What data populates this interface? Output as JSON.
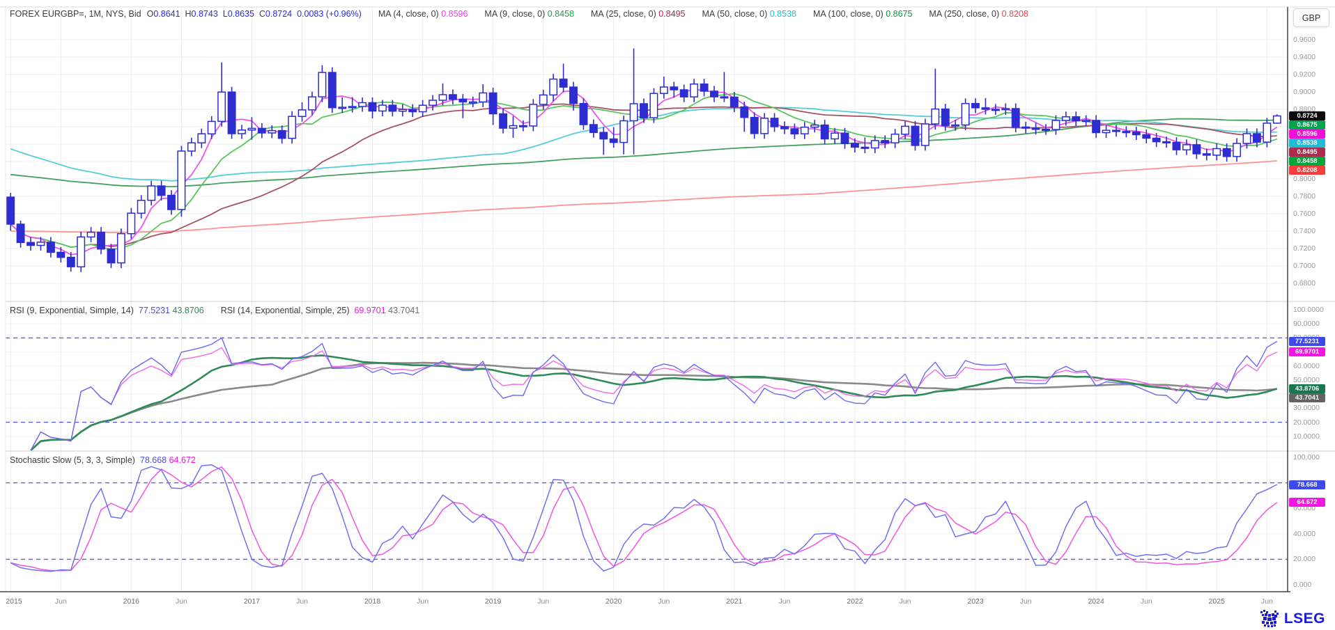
{
  "window": {
    "currency_button": "GBP"
  },
  "logo": {
    "text": "LSEG"
  },
  "main_panel": {
    "legend": {
      "title": "FOREX EURGBP=, 1M, NYS, Bid",
      "ohlc": [
        {
          "label": "O",
          "value": "0.8641"
        },
        {
          "label": "H",
          "value": "0.8743"
        },
        {
          "label": "L",
          "value": "0.8635"
        },
        {
          "label": "C",
          "value": "0.8724"
        }
      ],
      "change": "0.0083 (+0.96%)",
      "value_color": "#2929f0",
      "ma_items": [
        {
          "label": "MA (4, close, 0)",
          "value": "0.8596",
          "color": "#ee3fe4"
        },
        {
          "label": "MA (9, close, 0)",
          "value": "0.8458",
          "color": "#17a83b"
        },
        {
          "label": "MA (25, close, 0)",
          "value": "0.8495",
          "color": "#b0274e"
        },
        {
          "label": "MA (50, close, 0)",
          "value": "0.8538",
          "color": "#21bcd8"
        },
        {
          "label": "MA (100, close, 0)",
          "value": "0.8675",
          "color": "#0d9446"
        },
        {
          "label": "MA (250, close, 0)",
          "value": "0.8208",
          "color": "#e9414b"
        }
      ]
    },
    "axis_ticks": [
      "0.9600",
      "0.9400",
      "0.9200",
      "0.9000",
      "0.8800",
      "0.8600",
      "0.8400",
      "0.8200",
      "0.8000",
      "0.7800",
      "0.7600",
      "0.7400",
      "0.7200",
      "0.7000",
      "0.6800"
    ],
    "badges": [
      {
        "text": "0.8724",
        "bg": "#0a0a0a"
      },
      {
        "text": "0.8675",
        "bg": "#00a34e"
      },
      {
        "text": "0.8596",
        "bg": "#f010d8"
      },
      {
        "text": "0.8538",
        "bg": "#20bcd4"
      },
      {
        "text": "0.8495",
        "bg": "#aa2d4e"
      },
      {
        "text": "0.8458",
        "bg": "#00a53c"
      },
      {
        "text": "0.8208",
        "bg": "#f53d3d"
      }
    ]
  },
  "rsi_panel": {
    "legend_groups": [
      {
        "label": "RSI (9, Exponential, Simple, 14)",
        "values": [
          {
            "text": "77.5231",
            "color": "#4d4de8"
          },
          {
            "text": "43.8706",
            "color": "#2e8b57"
          }
        ]
      },
      {
        "label": "RSI (14, Exponential, Simple, 25)",
        "values": [
          {
            "text": "69.9701",
            "color": "#f316e3"
          },
          {
            "text": "43.7041",
            "color": "#6e6e6e"
          }
        ]
      }
    ],
    "axis_ticks": [
      "100.0000",
      "90.0000",
      "80.0000",
      "70.0000",
      "60.0000",
      "50.0000",
      "40.0000",
      "30.0000",
      "20.0000",
      "10.0000"
    ],
    "badges": [
      {
        "text": "77.5231",
        "bg": "#3d49e8"
      },
      {
        "text": "69.9701",
        "bg": "#f316e3"
      },
      {
        "text": "43.8706",
        "bg": "#17774d"
      },
      {
        "text": "43.7041",
        "bg": "#636363"
      }
    ],
    "levels": [
      80,
      20
    ]
  },
  "stoch_panel": {
    "legend_groups": [
      {
        "label": "Stochastic Slow (5, 3, 3, Simple)",
        "values": [
          {
            "text": "78.668",
            "color": "#4d4de8"
          },
          {
            "text": "64.672",
            "color": "#f316e3"
          }
        ]
      }
    ],
    "axis_ticks": [
      "100.000",
      "80.000",
      "60.000",
      "40.000",
      "20.000",
      "0.000"
    ],
    "badges": [
      {
        "text": "78.668",
        "bg": "#3d49e8"
      },
      {
        "text": "64.672",
        "bg": "#f316e3"
      }
    ],
    "levels": [
      80,
      20
    ]
  },
  "x_axis": {
    "labels": [
      {
        "text": "2015",
        "i": 0
      },
      {
        "text": "Jun",
        "i": 5
      },
      {
        "text": "2016",
        "i": 12
      },
      {
        "text": "Jun",
        "i": 17
      },
      {
        "text": "2017",
        "i": 24
      },
      {
        "text": "Jun",
        "i": 29
      },
      {
        "text": "2018",
        "i": 36
      },
      {
        "text": "Jun",
        "i": 41
      },
      {
        "text": "2019",
        "i": 48
      },
      {
        "text": "Jun",
        "i": 53
      },
      {
        "text": "2020",
        "i": 60
      },
      {
        "text": "Jun",
        "i": 65
      },
      {
        "text": "2021",
        "i": 72
      },
      {
        "text": "Jun",
        "i": 77
      },
      {
        "text": "2022",
        "i": 84
      },
      {
        "text": "Jun",
        "i": 89
      },
      {
        "text": "2023",
        "i": 96
      },
      {
        "text": "Jun",
        "i": 101
      },
      {
        "text": "2024",
        "i": 108
      },
      {
        "text": "Jun",
        "i": 113
      },
      {
        "text": "2025",
        "i": 120
      },
      {
        "text": "Jun",
        "i": 125
      }
    ]
  },
  "chart_data": {
    "type": "candlestick",
    "symbol": "FOREX EURGBP=",
    "interval": "1M",
    "quote": "Bid",
    "session": "NYS",
    "start": "2015-01",
    "y_axis": {
      "currency": "GBP",
      "min": 0.66,
      "max": 0.97
    },
    "ohlc": [
      [
        0.779,
        0.784,
        0.7405,
        0.748
      ],
      [
        0.748,
        0.752,
        0.721,
        0.727
      ],
      [
        0.727,
        0.733,
        0.7176,
        0.7236
      ],
      [
        0.7236,
        0.7333,
        0.7176,
        0.7273
      ],
      [
        0.7273,
        0.7333,
        0.7097,
        0.7157
      ],
      [
        0.7157,
        0.7217,
        0.7039,
        0.7099
      ],
      [
        0.7099,
        0.7159,
        0.6935,
        0.699
      ],
      [
        0.699,
        0.7393,
        0.693,
        0.7333
      ],
      [
        0.7333,
        0.7447,
        0.7273,
        0.7387
      ],
      [
        0.7387,
        0.7447,
        0.7134,
        0.7194
      ],
      [
        0.7194,
        0.7254,
        0.6975,
        0.7035
      ],
      [
        0.7035,
        0.743,
        0.6975,
        0.737
      ],
      [
        0.737,
        0.7666,
        0.731,
        0.7606
      ],
      [
        0.7606,
        0.7814,
        0.7546,
        0.7754
      ],
      [
        0.7754,
        0.7979,
        0.7694,
        0.7919
      ],
      [
        0.7919,
        0.7979,
        0.7751,
        0.7811
      ],
      [
        0.7811,
        0.7871,
        0.7588,
        0.7648
      ],
      [
        0.7648,
        0.838,
        0.7565,
        0.832
      ],
      [
        0.832,
        0.8474,
        0.826,
        0.8414
      ],
      [
        0.8414,
        0.8578,
        0.8354,
        0.8518
      ],
      [
        0.8518,
        0.8721,
        0.8458,
        0.8661
      ],
      [
        0.8661,
        0.934,
        0.8601,
        0.8998
      ],
      [
        0.8998,
        0.9058,
        0.846,
        0.852
      ],
      [
        0.852,
        0.8622,
        0.846,
        0.8562
      ],
      [
        0.8562,
        0.871,
        0.845,
        0.8581
      ],
      [
        0.8581,
        0.8641,
        0.8468,
        0.8528
      ],
      [
        0.8528,
        0.8615,
        0.8468,
        0.8555
      ],
      [
        0.8555,
        0.8615,
        0.8406,
        0.8466
      ],
      [
        0.8466,
        0.8778,
        0.8406,
        0.8718
      ],
      [
        0.8718,
        0.888,
        0.8658,
        0.8793
      ],
      [
        0.8793,
        0.9003,
        0.8733,
        0.8943
      ],
      [
        0.8943,
        0.9307,
        0.8883,
        0.9223
      ],
      [
        0.9223,
        0.9283,
        0.8758,
        0.8818
      ],
      [
        0.8818,
        0.8938,
        0.8758,
        0.8823
      ],
      [
        0.8823,
        0.894,
        0.8763,
        0.8832
      ],
      [
        0.8832,
        0.8936,
        0.8772,
        0.8876
      ],
      [
        0.8876,
        0.8936,
        0.8696,
        0.878
      ],
      [
        0.878,
        0.8907,
        0.872,
        0.8847
      ],
      [
        0.8847,
        0.8907,
        0.8718,
        0.8778
      ],
      [
        0.8778,
        0.8858,
        0.8718,
        0.8798
      ],
      [
        0.8798,
        0.8858,
        0.8712,
        0.8772
      ],
      [
        0.8772,
        0.8906,
        0.8712,
        0.8846
      ],
      [
        0.8846,
        0.8964,
        0.8786,
        0.8904
      ],
      [
        0.8904,
        0.9098,
        0.8844,
        0.8968
      ],
      [
        0.8968,
        0.9028,
        0.8855,
        0.8915
      ],
      [
        0.8915,
        0.8975,
        0.8697,
        0.8885
      ],
      [
        0.8885,
        0.8945,
        0.8825,
        0.8885
      ],
      [
        0.8885,
        0.9088,
        0.8825,
        0.8988
      ],
      [
        0.8988,
        0.9048,
        0.862,
        0.8748
      ],
      [
        0.8748,
        0.8808,
        0.8523,
        0.8583
      ],
      [
        0.8583,
        0.8722,
        0.8472,
        0.8612
      ],
      [
        0.8612,
        0.8672,
        0.8548,
        0.8608
      ],
      [
        0.8608,
        0.8917,
        0.8548,
        0.8857
      ],
      [
        0.8857,
        0.9025,
        0.8797,
        0.8965
      ],
      [
        0.8965,
        0.9207,
        0.8891,
        0.9147
      ],
      [
        0.9147,
        0.9325,
        0.8995,
        0.9055
      ],
      [
        0.9055,
        0.9115,
        0.8786,
        0.8866
      ],
      [
        0.8866,
        0.8926,
        0.8564,
        0.8624
      ],
      [
        0.8624,
        0.8684,
        0.8474,
        0.8534
      ],
      [
        0.8534,
        0.8594,
        0.8277,
        0.8459
      ],
      [
        0.8459,
        0.8595,
        0.8359,
        0.8419
      ],
      [
        0.8419,
        0.8728,
        0.8282,
        0.8668
      ],
      [
        0.8668,
        0.95,
        0.8281,
        0.8864
      ],
      [
        0.8864,
        0.8924,
        0.8643,
        0.8703
      ],
      [
        0.8703,
        0.9042,
        0.8643,
        0.8982
      ],
      [
        0.8982,
        0.9176,
        0.8922,
        0.9056
      ],
      [
        0.9056,
        0.9116,
        0.8934,
        0.9024
      ],
      [
        0.9024,
        0.9084,
        0.8882,
        0.8942
      ],
      [
        0.8942,
        0.915,
        0.8882,
        0.909
      ],
      [
        0.909,
        0.915,
        0.8948,
        0.9008
      ],
      [
        0.9008,
        0.9068,
        0.8883,
        0.8943
      ],
      [
        0.8943,
        0.9229,
        0.8883,
        0.894
      ],
      [
        0.894,
        0.9,
        0.8767,
        0.8827
      ],
      [
        0.8827,
        0.8887,
        0.8541,
        0.8706
      ],
      [
        0.8706,
        0.8766,
        0.8461,
        0.8521
      ],
      [
        0.8521,
        0.8757,
        0.8461,
        0.8697
      ],
      [
        0.8697,
        0.8757,
        0.854,
        0.86
      ],
      [
        0.86,
        0.866,
        0.8516,
        0.8576
      ],
      [
        0.8576,
        0.8636,
        0.8458,
        0.8518
      ],
      [
        0.8518,
        0.8654,
        0.8458,
        0.8594
      ],
      [
        0.8594,
        0.8679,
        0.8534,
        0.8619
      ],
      [
        0.8619,
        0.8679,
        0.84,
        0.846
      ],
      [
        0.846,
        0.8586,
        0.84,
        0.8526
      ],
      [
        0.8526,
        0.8586,
        0.8346,
        0.8406
      ],
      [
        0.8406,
        0.8466,
        0.8304,
        0.8364
      ],
      [
        0.8364,
        0.8477,
        0.8296,
        0.8356
      ],
      [
        0.8356,
        0.8501,
        0.8296,
        0.8441
      ],
      [
        0.8441,
        0.8501,
        0.8354,
        0.8414
      ],
      [
        0.8414,
        0.8574,
        0.8354,
        0.8514
      ],
      [
        0.8514,
        0.8665,
        0.8454,
        0.8605
      ],
      [
        0.8605,
        0.8665,
        0.8325,
        0.8385
      ],
      [
        0.8385,
        0.8692,
        0.8325,
        0.8632
      ],
      [
        0.8632,
        0.9267,
        0.8567,
        0.8803
      ],
      [
        0.8803,
        0.8863,
        0.8554,
        0.8614
      ],
      [
        0.8614,
        0.868,
        0.8554,
        0.862
      ],
      [
        0.862,
        0.8926,
        0.856,
        0.8866
      ],
      [
        0.8866,
        0.8926,
        0.8757,
        0.8817
      ],
      [
        0.8817,
        0.8929,
        0.874,
        0.88
      ],
      [
        0.88,
        0.886,
        0.8736,
        0.8796
      ],
      [
        0.8796,
        0.8868,
        0.8736,
        0.8808
      ],
      [
        0.8808,
        0.8868,
        0.8536,
        0.8596
      ],
      [
        0.8596,
        0.8656,
        0.8524,
        0.8584
      ],
      [
        0.8584,
        0.8644,
        0.851,
        0.857
      ],
      [
        0.857,
        0.863,
        0.8507,
        0.8567
      ],
      [
        0.8567,
        0.8732,
        0.8507,
        0.8672
      ],
      [
        0.8672,
        0.8774,
        0.8612,
        0.8714
      ],
      [
        0.8714,
        0.8774,
        0.8608,
        0.8668
      ],
      [
        0.8668,
        0.8732,
        0.8608,
        0.8672
      ],
      [
        0.8672,
        0.8732,
        0.8472,
        0.8532
      ],
      [
        0.8532,
        0.8618,
        0.8472,
        0.8558
      ],
      [
        0.8558,
        0.8618,
        0.8485,
        0.8545
      ],
      [
        0.8545,
        0.8605,
        0.8478,
        0.8538
      ],
      [
        0.8538,
        0.8598,
        0.8448,
        0.8508
      ],
      [
        0.8508,
        0.8568,
        0.8408,
        0.8468
      ],
      [
        0.8468,
        0.8528,
        0.8367,
        0.8427
      ],
      [
        0.8427,
        0.8487,
        0.8359,
        0.8419
      ],
      [
        0.8419,
        0.8479,
        0.8274,
        0.8334
      ],
      [
        0.8334,
        0.8453,
        0.8274,
        0.8393
      ],
      [
        0.8393,
        0.8453,
        0.8229,
        0.8289
      ],
      [
        0.8289,
        0.8349,
        0.8213,
        0.8273
      ],
      [
        0.8273,
        0.8408,
        0.8213,
        0.8348
      ],
      [
        0.8348,
        0.8408,
        0.8198,
        0.8258
      ],
      [
        0.8258,
        0.8468,
        0.8198,
        0.8408
      ],
      [
        0.8408,
        0.858,
        0.8348,
        0.852
      ],
      [
        0.852,
        0.858,
        0.8363,
        0.8423
      ],
      [
        0.8423,
        0.8701,
        0.8363,
        0.8641
      ],
      [
        0.8641,
        0.8743,
        0.8635,
        0.8724
      ]
    ],
    "overlays": [
      {
        "type": "ma",
        "period": 4,
        "source": "close",
        "offset": 0,
        "value": 0.8596,
        "color": "#ee55ea"
      },
      {
        "type": "ma",
        "period": 9,
        "source": "close",
        "offset": 0,
        "value": 0.8458,
        "color": "#58c65c"
      },
      {
        "type": "ma",
        "period": 25,
        "source": "close",
        "offset": 0,
        "value": 0.8495,
        "color": "#a85064"
      },
      {
        "type": "ma",
        "period": 50,
        "source": "close",
        "offset": 0,
        "value": 0.8538,
        "color": "#55cdd8"
      },
      {
        "type": "ma",
        "period": 100,
        "source": "close",
        "offset": 0,
        "value": 0.8675,
        "color": "#44a05c"
      },
      {
        "type": "ma",
        "period": 250,
        "source": "close",
        "offset": 0,
        "value": 0.8208,
        "color": "#ff9292"
      }
    ],
    "panels": [
      {
        "type": "rsi",
        "range": [
          0,
          100
        ],
        "levels": [
          80,
          20
        ],
        "series": [
          {
            "period": 9,
            "smoothing_period": 14,
            "value": 77.5231,
            "signal_value": 43.8706,
            "color": "#6a6af0",
            "signal_color": "#2e8b57"
          },
          {
            "period": 14,
            "smoothing_period": 25,
            "value": 69.9701,
            "signal_value": 43.7041,
            "color": "#f06aea",
            "signal_color": "#8a8a8a"
          }
        ]
      },
      {
        "type": "stochastic_slow",
        "params": [
          5,
          3,
          3,
          "Simple"
        ],
        "range": [
          0,
          100
        ],
        "levels": [
          80,
          20
        ],
        "k_value": 78.668,
        "d_value": 64.672,
        "k_color": "#7070f2",
        "d_color": "#f055e2"
      }
    ]
  }
}
